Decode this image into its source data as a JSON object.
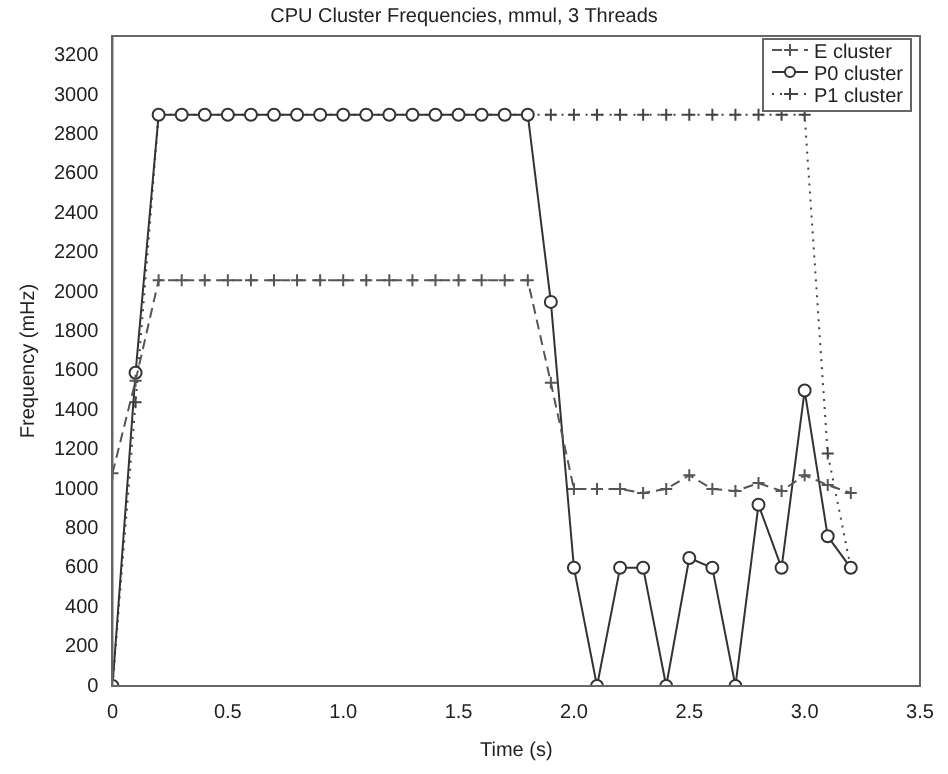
{
  "chart_data": {
    "type": "line",
    "title": "CPU Cluster Frequencies, mmul, 3 Threads",
    "xlabel": "Time (s)",
    "ylabel": "Frequency (mHz)",
    "x": [
      0,
      0.1,
      0.2,
      0.3,
      0.4,
      0.5,
      0.6,
      0.7,
      0.8,
      0.9,
      1.0,
      1.1,
      1.2,
      1.3,
      1.4,
      1.5,
      1.6,
      1.7,
      1.8,
      1.9,
      2.0,
      2.1,
      2.2,
      2.3,
      2.4,
      2.5,
      2.6,
      2.7,
      2.8,
      2.9,
      3.0,
      3.1,
      3.2
    ],
    "series": [
      {
        "name": "E cluster",
        "color": "#555555",
        "marker": "cross",
        "line_style": "dashed",
        "values": [
          1080,
          1550,
          2060,
          2060,
          2060,
          2060,
          2060,
          2060,
          2060,
          2060,
          2060,
          2060,
          2060,
          2060,
          2060,
          2060,
          2060,
          2060,
          2060,
          1540,
          1000,
          1000,
          1000,
          980,
          1000,
          1070,
          1000,
          990,
          1030,
          990,
          1070,
          1020,
          980
        ]
      },
      {
        "name": "P0 cluster",
        "color": "#333333",
        "marker": "circle",
        "line_style": "solid",
        "values": [
          0,
          1590,
          2900,
          2900,
          2900,
          2900,
          2900,
          2900,
          2900,
          2900,
          2900,
          2900,
          2900,
          2900,
          2900,
          2900,
          2900,
          2900,
          2900,
          1950,
          600,
          0,
          600,
          600,
          0,
          650,
          600,
          0,
          920,
          600,
          1500,
          760,
          600
        ]
      },
      {
        "name": "P1 cluster",
        "color": "#444444",
        "marker": "cross",
        "line_style": "dotted",
        "values": [
          0,
          1440,
          2900,
          2900,
          2900,
          2900,
          2900,
          2900,
          2900,
          2900,
          2900,
          2900,
          2900,
          2900,
          2900,
          2900,
          2900,
          2900,
          2900,
          2900,
          2900,
          2900,
          2900,
          2900,
          2900,
          2900,
          2900,
          2900,
          2900,
          2900,
          2900,
          1180,
          600
        ]
      }
    ],
    "xlim": [
      0,
      3.5
    ],
    "xticks": [
      0,
      {
        "value": 0.5,
        "label": "0.5"
      },
      {
        "value": 1,
        "label": "1.0"
      },
      {
        "value": 1.5,
        "label": "1.5"
      },
      {
        "value": 2,
        "label": "2.0"
      },
      {
        "value": 2.5,
        "label": "2.5"
      },
      {
        "value": 3,
        "label": "3.0"
      },
      {
        "value": 3.5,
        "label": "3.5"
      }
    ],
    "ylim": [
      0,
      3300
    ],
    "yticks": [
      0,
      200,
      400,
      600,
      800,
      1000,
      1200,
      1400,
      1600,
      1800,
      2000,
      2200,
      2400,
      2600,
      2800,
      3000,
      3200
    ],
    "grid": false,
    "legend": "top right"
  }
}
